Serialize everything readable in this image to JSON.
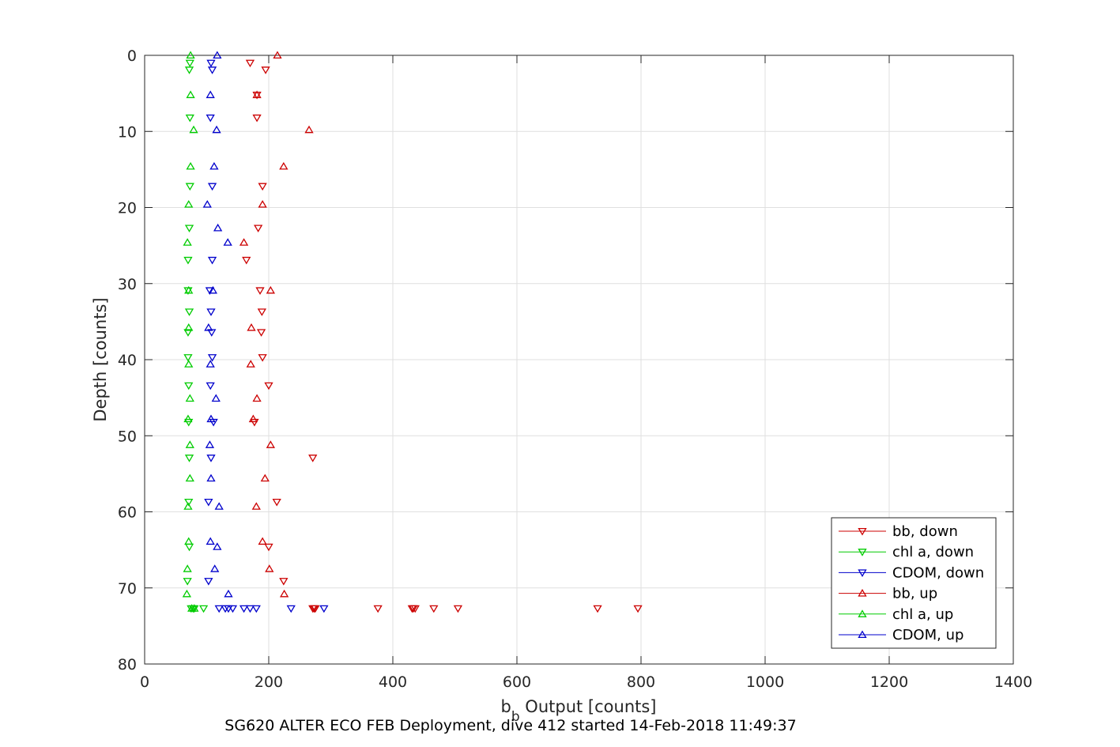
{
  "chart_data": {
    "type": "scatter",
    "xlabel_main": "b",
    "xlabel_sub": "b",
    "xlabel_rest": " Output [counts]",
    "ylabel": "Depth [counts]",
    "caption": "SG620 ALTER ECO FEB Deployment, dive 412 started 14-Feb-2018 11:49:37",
    "xlim": [
      0,
      1400
    ],
    "ylim": [
      0,
      80
    ],
    "y_reversed": true,
    "grid": true,
    "legend_position": "bottom-right",
    "x_ticks": [
      0,
      200,
      400,
      600,
      800,
      1000,
      1200,
      1400
    ],
    "y_ticks": [
      0,
      10,
      20,
      30,
      40,
      50,
      60,
      70,
      80
    ],
    "series": [
      {
        "name": "bb, down",
        "marker": "triangle-down",
        "color": "#cc0000",
        "points": [
          [
            170,
            1
          ],
          [
            195,
            1.9
          ],
          [
            181,
            5.2
          ],
          [
            181,
            8.2
          ],
          [
            190,
            17.2
          ],
          [
            183,
            22.7
          ],
          [
            164,
            26.9
          ],
          [
            186,
            30.9
          ],
          [
            189,
            33.7
          ],
          [
            188,
            36.4
          ],
          [
            190,
            39.7
          ],
          [
            200,
            43.4
          ],
          [
            177,
            48.2
          ],
          [
            271,
            52.9
          ],
          [
            213,
            58.7
          ],
          [
            200,
            64.6
          ],
          [
            224,
            69.1
          ],
          [
            271,
            72.7
          ],
          [
            273,
            72.7
          ],
          [
            275,
            72.7
          ],
          [
            376,
            72.7
          ],
          [
            431,
            72.7
          ],
          [
            433,
            72.7
          ],
          [
            436,
            72.7
          ],
          [
            466,
            72.7
          ],
          [
            505,
            72.7
          ],
          [
            730,
            72.7
          ],
          [
            795,
            72.7
          ]
        ]
      },
      {
        "name": "chl a, down",
        "marker": "triangle-down",
        "color": "#00cc00",
        "points": [
          [
            73,
            1
          ],
          [
            72,
            1.9
          ],
          [
            73,
            8.2
          ],
          [
            73,
            17.2
          ],
          [
            72,
            22.7
          ],
          [
            70,
            26.9
          ],
          [
            70,
            30.9
          ],
          [
            72,
            33.7
          ],
          [
            70,
            36.4
          ],
          [
            70,
            39.7
          ],
          [
            71,
            43.4
          ],
          [
            71,
            48.2
          ],
          [
            72,
            52.9
          ],
          [
            71,
            58.7
          ],
          [
            72,
            64.6
          ],
          [
            69,
            69.1
          ],
          [
            75,
            72.7
          ],
          [
            78,
            72.7
          ],
          [
            80,
            72.7
          ],
          [
            95,
            72.7
          ]
        ]
      },
      {
        "name": "CDOM, down",
        "marker": "triangle-down",
        "color": "#0000cc",
        "points": [
          [
            107,
            1
          ],
          [
            109,
            1.9
          ],
          [
            106,
            8.2
          ],
          [
            109,
            17.2
          ],
          [
            109,
            26.9
          ],
          [
            105,
            30.9
          ],
          [
            107,
            33.7
          ],
          [
            108,
            36.4
          ],
          [
            109,
            39.7
          ],
          [
            106,
            43.4
          ],
          [
            111,
            48.2
          ],
          [
            107,
            52.9
          ],
          [
            103,
            58.7
          ],
          [
            103,
            69.1
          ],
          [
            120,
            72.7
          ],
          [
            130,
            72.7
          ],
          [
            135,
            72.7
          ],
          [
            142,
            72.7
          ],
          [
            160,
            72.7
          ],
          [
            170,
            72.7
          ],
          [
            180,
            72.7
          ],
          [
            236,
            72.7
          ],
          [
            289,
            72.7
          ]
        ]
      },
      {
        "name": "bb, up",
        "marker": "triangle-up",
        "color": "#cc0000",
        "points": [
          [
            214,
            0
          ],
          [
            181,
            5.2
          ],
          [
            265,
            9.8
          ],
          [
            224,
            14.6
          ],
          [
            190,
            19.6
          ],
          [
            160,
            24.6
          ],
          [
            203,
            30.9
          ],
          [
            172,
            35.8
          ],
          [
            171,
            40.6
          ],
          [
            181,
            45.1
          ],
          [
            175,
            47.8
          ],
          [
            203,
            51.2
          ],
          [
            194,
            55.6
          ],
          [
            180,
            59.3
          ],
          [
            190,
            63.9
          ],
          [
            201,
            67.5
          ],
          [
            225,
            70.8
          ]
        ]
      },
      {
        "name": "chl a, up",
        "marker": "triangle-up",
        "color": "#00cc00",
        "points": [
          [
            74,
            0
          ],
          [
            74,
            5.2
          ],
          [
            79,
            9.8
          ],
          [
            74,
            14.6
          ],
          [
            71,
            19.6
          ],
          [
            69,
            24.6
          ],
          [
            71,
            30.9
          ],
          [
            71,
            35.8
          ],
          [
            71,
            40.6
          ],
          [
            73,
            45.1
          ],
          [
            70,
            47.8
          ],
          [
            73,
            51.2
          ],
          [
            73,
            55.6
          ],
          [
            70,
            59.3
          ],
          [
            71,
            63.9
          ],
          [
            69,
            67.5
          ],
          [
            68,
            70.8
          ],
          [
            76,
            72.7
          ],
          [
            80,
            72.7
          ]
        ]
      },
      {
        "name": "CDOM, up",
        "marker": "triangle-up",
        "color": "#0000cc",
        "points": [
          [
            117,
            0
          ],
          [
            106,
            5.2
          ],
          [
            116,
            9.8
          ],
          [
            112,
            14.6
          ],
          [
            101,
            19.6
          ],
          [
            118,
            22.7
          ],
          [
            134,
            24.6
          ],
          [
            110,
            30.9
          ],
          [
            103,
            35.8
          ],
          [
            106,
            40.6
          ],
          [
            115,
            45.1
          ],
          [
            107,
            47.8
          ],
          [
            105,
            51.2
          ],
          [
            107,
            55.6
          ],
          [
            120,
            59.3
          ],
          [
            106,
            63.9
          ],
          [
            117,
            64.6
          ],
          [
            113,
            67.5
          ],
          [
            135,
            70.8
          ]
        ]
      }
    ]
  }
}
